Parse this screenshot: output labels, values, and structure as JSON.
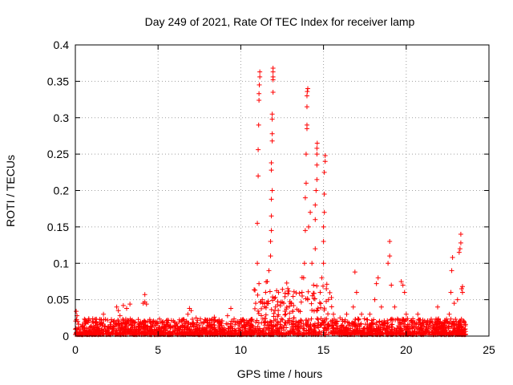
{
  "chart_data": {
    "type": "scatter",
    "title": "Day 249 of 2021, Rate Of TEC Index for receiver lamp",
    "xlabel": "GPS time / hours",
    "ylabel": "ROTI / TECUs",
    "xlim": [
      0,
      25
    ],
    "ylim": [
      0,
      0.4
    ],
    "x_ticks": [
      0,
      5,
      10,
      15,
      20,
      25
    ],
    "x_tick_labels": [
      "0",
      "5",
      "10",
      "15",
      "20",
      "25"
    ],
    "y_ticks": [
      0,
      0.05,
      0.1,
      0.15,
      0.2,
      0.25,
      0.3,
      0.35,
      0.4
    ],
    "y_tick_labels": [
      "0",
      "0.05",
      "0.1",
      "0.15",
      "0.2",
      "0.25",
      "0.3",
      "0.35",
      "0.4"
    ],
    "grid": true,
    "marker": "+",
    "color": "#ff0000",
    "series": [
      {
        "name": "ROTI",
        "points": [
          [
            0.05,
            0.034
          ],
          [
            0.1,
            0.028
          ],
          [
            0.15,
            0.02
          ],
          [
            0.2,
            0.012
          ],
          [
            0.3,
            0.008
          ],
          [
            0.5,
            0.01
          ],
          [
            0.8,
            0.006
          ],
          [
            1.2,
            0.012
          ],
          [
            1.6,
            0.018
          ],
          [
            1.7,
            0.03
          ],
          [
            2.0,
            0.012
          ],
          [
            2.3,
            0.02
          ],
          [
            2.5,
            0.04
          ],
          [
            2.6,
            0.035
          ],
          [
            2.7,
            0.028
          ],
          [
            2.9,
            0.042
          ],
          [
            3.1,
            0.038
          ],
          [
            3.3,
            0.044
          ],
          [
            3.5,
            0.02
          ],
          [
            3.8,
            0.014
          ],
          [
            4.2,
            0.057
          ],
          [
            4.2,
            0.047
          ],
          [
            4.1,
            0.045
          ],
          [
            4.3,
            0.044
          ],
          [
            4.5,
            0.02
          ],
          [
            4.8,
            0.015
          ],
          [
            5.2,
            0.01
          ],
          [
            5.6,
            0.018
          ],
          [
            6.0,
            0.014
          ],
          [
            6.4,
            0.02
          ],
          [
            6.8,
            0.03
          ],
          [
            6.9,
            0.038
          ],
          [
            7.0,
            0.035
          ],
          [
            7.3,
            0.025
          ],
          [
            7.6,
            0.018
          ],
          [
            8.0,
            0.022
          ],
          [
            8.4,
            0.026
          ],
          [
            8.8,
            0.018
          ],
          [
            9.2,
            0.028
          ],
          [
            9.4,
            0.038
          ],
          [
            9.8,
            0.02
          ],
          [
            10.2,
            0.015
          ],
          [
            10.6,
            0.022
          ],
          [
            10.9,
            0.045
          ],
          [
            11.0,
            0.1
          ],
          [
            11.0,
            0.155
          ],
          [
            11.05,
            0.22
          ],
          [
            11.05,
            0.256
          ],
          [
            11.08,
            0.29
          ],
          [
            11.1,
            0.324
          ],
          [
            11.1,
            0.333
          ],
          [
            11.12,
            0.345
          ],
          [
            11.15,
            0.356
          ],
          [
            11.15,
            0.363
          ],
          [
            11.1,
            0.072
          ],
          [
            11.3,
            0.05
          ],
          [
            11.5,
            0.06
          ],
          [
            11.6,
            0.075
          ],
          [
            11.7,
            0.09
          ],
          [
            11.8,
            0.11
          ],
          [
            11.8,
            0.13
          ],
          [
            11.85,
            0.145
          ],
          [
            11.85,
            0.165
          ],
          [
            11.85,
            0.188
          ],
          [
            11.9,
            0.2
          ],
          [
            11.85,
            0.228
          ],
          [
            11.85,
            0.238
          ],
          [
            11.9,
            0.268
          ],
          [
            11.9,
            0.278
          ],
          [
            11.9,
            0.298
          ],
          [
            11.9,
            0.305
          ],
          [
            11.95,
            0.335
          ],
          [
            11.95,
            0.352
          ],
          [
            11.95,
            0.356
          ],
          [
            11.95,
            0.363
          ],
          [
            11.95,
            0.368
          ],
          [
            12.1,
            0.04
          ],
          [
            12.4,
            0.02
          ],
          [
            12.8,
            0.018
          ],
          [
            13.2,
            0.025
          ],
          [
            13.5,
            0.035
          ],
          [
            13.7,
            0.06
          ],
          [
            13.8,
            0.08
          ],
          [
            13.85,
            0.1
          ],
          [
            13.9,
            0.145
          ],
          [
            13.9,
            0.19
          ],
          [
            13.95,
            0.21
          ],
          [
            13.95,
            0.25
          ],
          [
            14.0,
            0.285
          ],
          [
            14.0,
            0.29
          ],
          [
            14.0,
            0.315
          ],
          [
            14.0,
            0.33
          ],
          [
            14.02,
            0.336
          ],
          [
            14.05,
            0.34
          ],
          [
            14.1,
            0.15
          ],
          [
            14.2,
            0.17
          ],
          [
            14.3,
            0.1
          ],
          [
            14.4,
            0.07
          ],
          [
            14.5,
            0.12
          ],
          [
            14.5,
            0.16
          ],
          [
            14.5,
            0.18
          ],
          [
            14.55,
            0.2
          ],
          [
            14.6,
            0.215
          ],
          [
            14.6,
            0.235
          ],
          [
            14.6,
            0.25
          ],
          [
            14.6,
            0.258
          ],
          [
            14.62,
            0.265
          ],
          [
            14.8,
            0.06
          ],
          [
            14.9,
            0.08
          ],
          [
            15.0,
            0.1
          ],
          [
            15.0,
            0.13
          ],
          [
            15.0,
            0.15
          ],
          [
            15.05,
            0.17
          ],
          [
            15.05,
            0.195
          ],
          [
            15.05,
            0.225
          ],
          [
            15.1,
            0.24
          ],
          [
            15.1,
            0.248
          ],
          [
            15.3,
            0.05
          ],
          [
            15.6,
            0.03
          ],
          [
            16.0,
            0.025
          ],
          [
            16.4,
            0.03
          ],
          [
            16.8,
            0.04
          ],
          [
            16.9,
            0.088
          ],
          [
            17.0,
            0.06
          ],
          [
            17.3,
            0.03
          ],
          [
            17.8,
            0.03
          ],
          [
            18.1,
            0.05
          ],
          [
            18.2,
            0.072
          ],
          [
            18.3,
            0.08
          ],
          [
            18.5,
            0.04
          ],
          [
            18.9,
            0.1
          ],
          [
            19.0,
            0.13
          ],
          [
            19.0,
            0.11
          ],
          [
            19.1,
            0.07
          ],
          [
            19.3,
            0.04
          ],
          [
            19.7,
            0.075
          ],
          [
            19.8,
            0.07
          ],
          [
            19.9,
            0.06
          ],
          [
            20.0,
            0.03
          ],
          [
            20.4,
            0.02
          ],
          [
            20.7,
            0.03
          ],
          [
            21.0,
            0.022
          ],
          [
            21.5,
            0.02
          ],
          [
            21.9,
            0.04
          ],
          [
            22.2,
            0.015
          ],
          [
            22.5,
            0.02
          ],
          [
            22.6,
            0.03
          ],
          [
            22.7,
            0.06
          ],
          [
            22.75,
            0.09
          ],
          [
            22.8,
            0.108
          ],
          [
            22.9,
            0.045
          ],
          [
            23.1,
            0.05
          ],
          [
            23.2,
            0.115
          ],
          [
            23.25,
            0.12
          ],
          [
            23.3,
            0.128
          ],
          [
            23.3,
            0.14
          ],
          [
            23.35,
            0.065
          ],
          [
            23.4,
            0.06
          ],
          [
            23.4,
            0.068
          ],
          [
            23.5,
            0.02
          ]
        ]
      }
    ]
  }
}
